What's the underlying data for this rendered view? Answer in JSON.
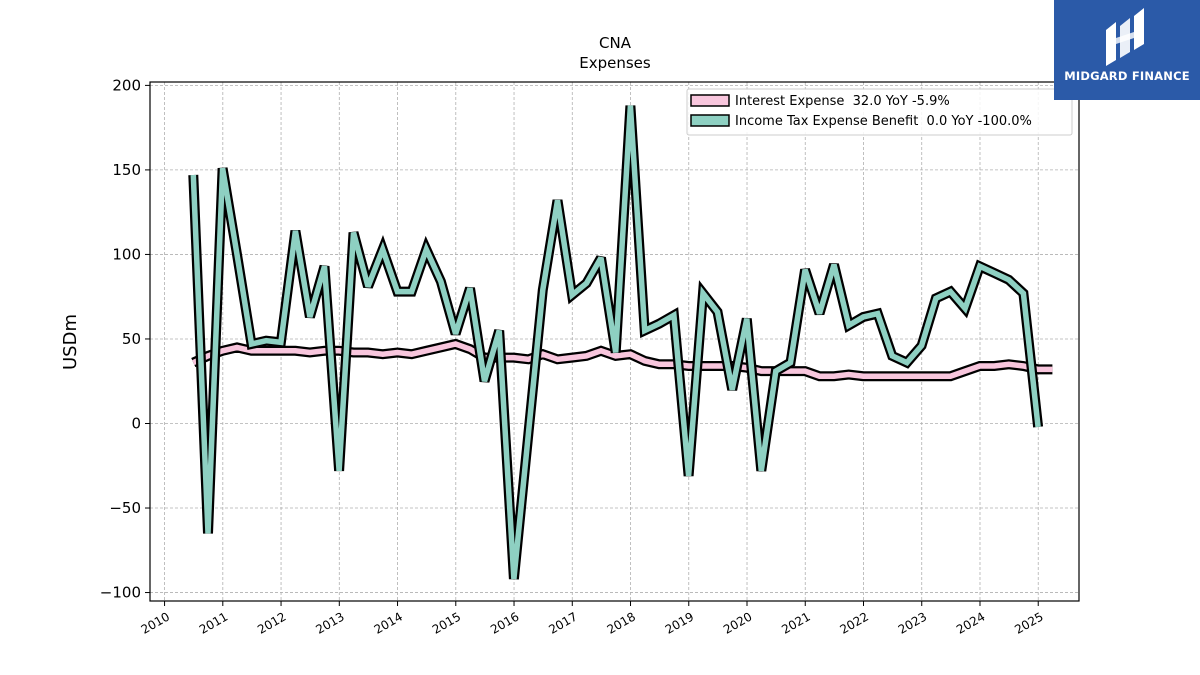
{
  "chart_data": {
    "type": "line",
    "title": "CNA",
    "subtitle": "Expenses",
    "ylabel": "USDm",
    "xlabel": "",
    "ylim": [
      -105,
      202
    ],
    "xlim": [
      2009.75,
      2025.7
    ],
    "yticks": [
      -100,
      -50,
      0,
      50,
      100,
      150,
      200
    ],
    "xticks": [
      "2010",
      "2011",
      "2012",
      "2013",
      "2014",
      "2015",
      "2016",
      "2017",
      "2018",
      "2019",
      "2020",
      "2021",
      "2022",
      "2023",
      "2024",
      "2025"
    ],
    "grid": true,
    "legend_position": "top-right",
    "series": [
      {
        "name": "Interest Expense",
        "legend_label": "Interest Expense  32.0 YoY -5.9%",
        "color": "#f8c6dd",
        "x": [
          "2010-06-30",
          "2010-09-30",
          "2010-12-31",
          "2011-03-31",
          "2011-06-30",
          "2011-09-30",
          "2011-12-31",
          "2012-03-31",
          "2012-06-30",
          "2012-09-30",
          "2012-12-31",
          "2013-03-31",
          "2013-06-30",
          "2013-09-30",
          "2013-12-31",
          "2014-03-31",
          "2014-06-30",
          "2014-09-30",
          "2014-12-31",
          "2015-03-31",
          "2015-06-30",
          "2015-09-30",
          "2015-12-31",
          "2016-03-31",
          "2016-06-30",
          "2016-09-30",
          "2016-12-31",
          "2017-03-31",
          "2017-06-30",
          "2017-09-30",
          "2017-12-31",
          "2018-03-31",
          "2018-06-30",
          "2018-09-30",
          "2018-12-31",
          "2019-03-31",
          "2019-06-30",
          "2019-09-30",
          "2019-12-31",
          "2020-03-31",
          "2020-06-30",
          "2020-09-30",
          "2020-12-31",
          "2021-03-31",
          "2021-06-30",
          "2021-09-30",
          "2021-12-31",
          "2022-03-31",
          "2022-06-30",
          "2022-09-30",
          "2022-12-31",
          "2023-03-31",
          "2023-06-30",
          "2023-09-30",
          "2023-12-31",
          "2024-03-31",
          "2024-06-30",
          "2024-09-30",
          "2024-12-31",
          "2025-03-31"
        ],
        "values": [
          36,
          40,
          43,
          45,
          43,
          43,
          43,
          43,
          42,
          43,
          43,
          42,
          42,
          41,
          42,
          41,
          43,
          45,
          47,
          44,
          39,
          39,
          39,
          38,
          41,
          38,
          39,
          40,
          43,
          40,
          41,
          37,
          35,
          35,
          34,
          34,
          34,
          34,
          33,
          31,
          31,
          31,
          31,
          28,
          28,
          29,
          28,
          28,
          28,
          28,
          28,
          28,
          28,
          31,
          34,
          34,
          35,
          34,
          32,
          32
        ]
      },
      {
        "name": "Income Tax Expense Benefit",
        "legend_label": "Income Tax Expense Benefit  0.0 YoY -100.0%",
        "color": "#8ed0c2",
        "x": [
          "2010-06-30",
          "2010-09-30",
          "2010-12-31",
          "2011-03-31",
          "2011-06-30",
          "2011-09-30",
          "2011-12-31",
          "2012-03-31",
          "2012-06-30",
          "2012-09-30",
          "2012-12-31",
          "2013-03-31",
          "2013-06-30",
          "2013-09-30",
          "2013-12-31",
          "2014-03-31",
          "2014-06-30",
          "2014-09-30",
          "2014-12-31",
          "2015-03-31",
          "2015-06-30",
          "2015-09-30",
          "2015-12-31",
          "2016-03-31",
          "2016-06-30",
          "2016-09-30",
          "2016-12-31",
          "2017-03-31",
          "2017-06-30",
          "2017-09-30",
          "2017-12-31",
          "2018-03-31",
          "2018-06-30",
          "2018-09-30",
          "2018-12-31",
          "2019-03-31",
          "2019-06-30",
          "2019-09-30",
          "2019-12-31",
          "2020-03-31",
          "2020-06-30",
          "2020-09-30",
          "2020-12-31",
          "2021-03-31",
          "2021-06-30",
          "2021-09-30",
          "2021-12-31",
          "2022-03-31",
          "2022-06-30",
          "2022-09-30",
          "2022-12-31",
          "2023-03-31",
          "2023-06-30",
          "2023-09-30",
          "2023-12-31",
          "2024-03-31",
          "2024-06-30",
          "2024-09-30",
          "2024-12-31",
          "2025-03-31"
        ],
        "values": [
          147,
          -65,
          151,
          100,
          47,
          49,
          48,
          114,
          63,
          93,
          -28,
          113,
          81,
          103,
          78,
          78,
          103,
          84,
          53,
          80,
          25,
          55,
          -92,
          -6,
          79,
          132,
          76,
          83,
          98,
          42,
          188,
          55,
          59,
          64,
          -31,
          77,
          66,
          20,
          62,
          -28,
          31,
          36,
          91,
          65,
          94,
          58,
          63,
          65,
          40,
          36,
          46,
          74,
          78,
          68,
          93,
          89,
          85,
          77,
          -2,
          null
        ]
      }
    ]
  },
  "logo": {
    "name": "MIDGARD FINANCE"
  }
}
